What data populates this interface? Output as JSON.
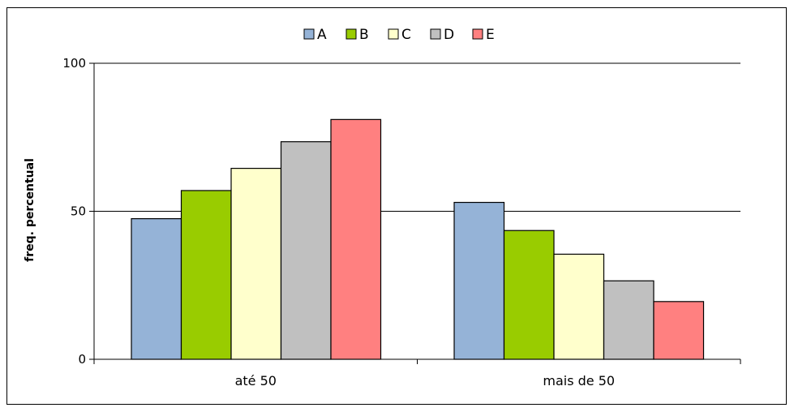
{
  "chart_data": {
    "type": "bar",
    "categories": [
      "até 50",
      "mais de 50"
    ],
    "series": [
      {
        "name": "A",
        "values": [
          47.5,
          53
        ],
        "color": "#95b3d7"
      },
      {
        "name": "B",
        "values": [
          57,
          43.5
        ],
        "color": "#99cc00"
      },
      {
        "name": "C",
        "values": [
          64.5,
          35.5
        ],
        "color": "#ffffcc"
      },
      {
        "name": "D",
        "values": [
          73.5,
          26.5
        ],
        "color": "#c0c0c0"
      },
      {
        "name": "E",
        "values": [
          81,
          19.5
        ],
        "color": "#ff8080"
      }
    ],
    "title": "",
    "xlabel": "",
    "ylabel": "freq. percentual",
    "ylim": [
      0,
      100
    ],
    "yticks": [
      0,
      50,
      100
    ],
    "grid": true,
    "legend_position": "top"
  }
}
